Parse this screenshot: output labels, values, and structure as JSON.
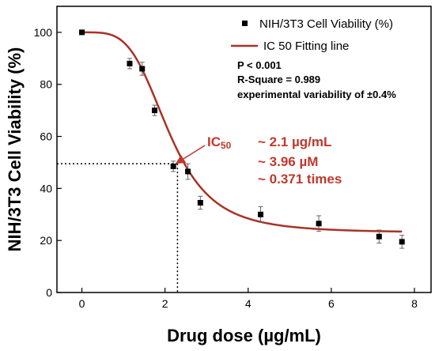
{
  "chart_data": {
    "type": "scatter",
    "xlabel": "Drug dose (µg/mL)",
    "ylabel": "NIH/3T3 Cell Viability (%)",
    "xlim": [
      -0.6,
      8.4
    ],
    "ylim": [
      0,
      110
    ],
    "xticks": [
      0,
      2,
      4,
      6,
      8
    ],
    "yticks": [
      0,
      20,
      40,
      60,
      80,
      100
    ],
    "grid": false,
    "legend_position": "top-right",
    "series": [
      {
        "name": "NIH/3T3 Cell Viability (%)",
        "marker": "square",
        "color": "#000000",
        "x": [
          0,
          1.15,
          1.45,
          1.75,
          2.2,
          2.55,
          2.85,
          4.3,
          5.7,
          7.15,
          7.7
        ],
        "y": [
          100,
          88,
          86,
          70,
          48.5,
          46.5,
          34.5,
          30,
          26.5,
          21.5,
          19.5
        ],
        "error": [
          0.8,
          2,
          2.5,
          2,
          2,
          3,
          2.5,
          3,
          3,
          2.5,
          2.5
        ]
      },
      {
        "name": "IC 50 Fitting line",
        "color": "#a93226",
        "model": "logistic",
        "top": 100,
        "bottom": 23,
        "ic50": 2.1,
        "hill": 4
      }
    ],
    "stats": [
      "P < 0.001",
      "R-Square = 0.989",
      "experimental variability of ±0.4%"
    ],
    "annotation": {
      "prefix": "IC",
      "subscript": "50",
      "lines": [
        "~ 2.1 µg/mL",
        "~ 3.96 µM",
        "~ 0.371 times"
      ],
      "color": "#c0392b",
      "arrow_to": [
        2.2,
        48.5
      ],
      "dotted_guide": {
        "x": 2.3,
        "y": 49.5
      }
    }
  }
}
